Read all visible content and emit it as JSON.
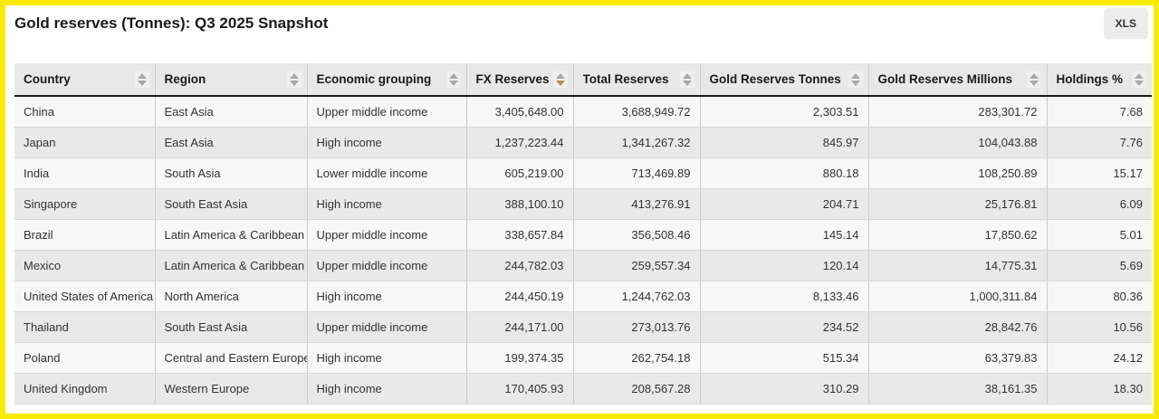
{
  "page": {
    "title": "Gold reserves (Tonnes): Q3 2025 Snapshot",
    "xls_button_label": "XLS"
  },
  "colors": {
    "accent_border": "#f8ea00",
    "sort_active": "#ab9350",
    "sort_idle": "#a8a8a8",
    "header_bg": "#e8e8e8",
    "row_odd": "#f7f7f7",
    "row_even": "#e9e9e9"
  },
  "table": {
    "columns": [
      {
        "label": "Country",
        "align": "left",
        "sort": "none"
      },
      {
        "label": "Region",
        "align": "left",
        "sort": "none"
      },
      {
        "label": "Economic grouping",
        "align": "left",
        "sort": "none"
      },
      {
        "label": "FX Reserves",
        "align": "right",
        "sort": "desc"
      },
      {
        "label": "Total Reserves",
        "align": "right",
        "sort": "none"
      },
      {
        "label": "Gold Reserves Tonnes",
        "align": "right",
        "sort": "none"
      },
      {
        "label": "Gold Reserves Millions",
        "align": "right",
        "sort": "none"
      },
      {
        "label": "Holdings %",
        "align": "right",
        "sort": "none"
      }
    ],
    "rows": [
      [
        "China",
        "East Asia",
        "Upper middle income",
        "3,405,648.00",
        "3,688,949.72",
        "2,303.51",
        "283,301.72",
        "7.68"
      ],
      [
        "Japan",
        "East Asia",
        "High income",
        "1,237,223.44",
        "1,341,267.32",
        "845.97",
        "104,043.88",
        "7.76"
      ],
      [
        "India",
        "South Asia",
        "Lower middle income",
        "605,219.00",
        "713,469.89",
        "880.18",
        "108,250.89",
        "15.17"
      ],
      [
        "Singapore",
        "South East Asia",
        "High income",
        "388,100.10",
        "413,276.91",
        "204.71",
        "25,176.81",
        "6.09"
      ],
      [
        "Brazil",
        "Latin America & Caribbean",
        "Upper middle income",
        "338,657.84",
        "356,508.46",
        "145.14",
        "17,850.62",
        "5.01"
      ],
      [
        "Mexico",
        "Latin America & Caribbean",
        "Upper middle income",
        "244,782.03",
        "259,557.34",
        "120.14",
        "14,775.31",
        "5.69"
      ],
      [
        "United States of America",
        "North America",
        "High income",
        "244,450.19",
        "1,244,762.03",
        "8,133.46",
        "1,000,311.84",
        "80.36"
      ],
      [
        "Thailand",
        "South East Asia",
        "Upper middle income",
        "244,171.00",
        "273,013.76",
        "234.52",
        "28,842.76",
        "10.56"
      ],
      [
        "Poland",
        "Central and Eastern Europe",
        "High income",
        "199,374.35",
        "262,754.18",
        "515.34",
        "63,379.83",
        "24.12"
      ],
      [
        "United Kingdom",
        "Western Europe",
        "High income",
        "170,405.93",
        "208,567.28",
        "310.29",
        "38,161.35",
        "18.30"
      ]
    ]
  }
}
